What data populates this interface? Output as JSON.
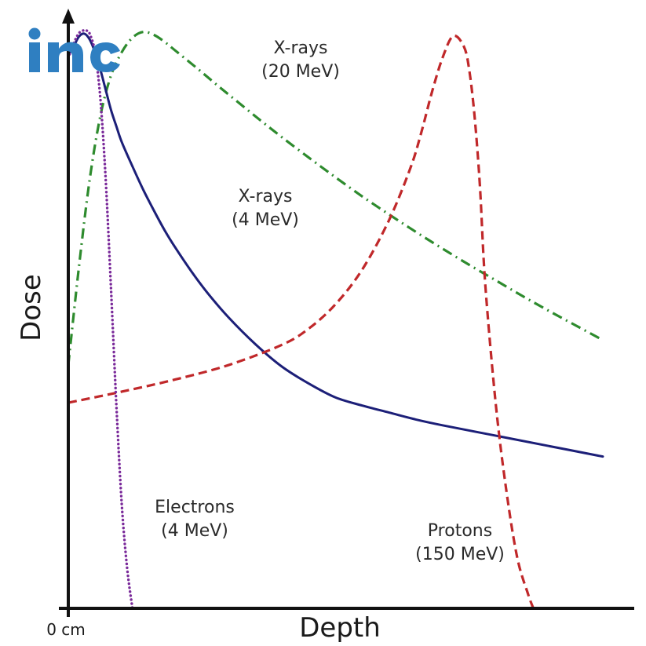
{
  "logo": {
    "text": "inc",
    "color": "#2f7fc1"
  },
  "chart_data": {
    "type": "line",
    "title": "",
    "xlabel": "Depth",
    "ylabel": "Dose",
    "x_tick_label": "0 cm",
    "xlim": [
      0,
      100
    ],
    "ylim": [
      0,
      100
    ],
    "grid": false,
    "legend": "none",
    "series": [
      {
        "name": "X-rays (20 MeV)",
        "label_lines": [
          "X-rays",
          "(20 MeV)"
        ],
        "color": "#2e8b2e",
        "dash": "dash-dot",
        "x": [
          0,
          2,
          4,
          6,
          8,
          10,
          12,
          14,
          16,
          18,
          20,
          24,
          28,
          32,
          36,
          40,
          45,
          50,
          55,
          60,
          65,
          70,
          75,
          80,
          85,
          90,
          95,
          100
        ],
        "y": [
          42,
          59,
          74,
          85,
          92,
          96,
          98.5,
          99.5,
          99,
          97.8,
          96.3,
          93.3,
          90.2,
          87.2,
          84.2,
          81.3,
          77.8,
          74.4,
          71.1,
          68,
          65,
          62.1,
          59.3,
          56.6,
          53.9,
          51.3,
          48.8,
          46.3
        ]
      },
      {
        "name": "X-rays (4 MeV)",
        "label_lines": [
          "X-rays",
          "(4 MeV)"
        ],
        "color": "#1c1f78",
        "dash": "solid",
        "x": [
          0,
          1,
          2,
          3,
          4,
          5,
          6,
          7,
          8,
          9,
          10,
          12,
          14,
          16,
          18,
          20,
          23,
          26,
          30,
          35,
          40,
          45,
          50,
          55,
          60,
          65,
          70,
          80,
          90,
          100
        ],
        "y": [
          95.5,
          97,
          98.7,
          99.2,
          98.2,
          96,
          93,
          89.5,
          86,
          83.2,
          80.5,
          76.3,
          72.3,
          68.7,
          65.3,
          62.3,
          58.2,
          54.5,
          50.2,
          45.6,
          41.7,
          38.8,
          36.4,
          35,
          33.8,
          32.6,
          31.6,
          29.8,
          28,
          26.2
        ]
      },
      {
        "name": "Electrons (4 MeV)",
        "label_lines": [
          "Electrons",
          "(4 MeV)"
        ],
        "color": "#7a2a9a",
        "dash": "dotted",
        "x": [
          0,
          1,
          2,
          3,
          3.5,
          4,
          5,
          6,
          7,
          8,
          9,
          10,
          11,
          12
        ],
        "y": [
          95,
          97.5,
          99.3,
          99.8,
          99.7,
          99.2,
          96,
          88,
          74,
          55,
          35,
          18,
          7,
          0
        ]
      },
      {
        "name": "Protons (150 MeV)",
        "label_lines": [
          "Protons",
          "(150 MeV)"
        ],
        "color": "#c0282a",
        "dash": "dashed",
        "x": [
          0,
          10,
          20,
          30,
          40,
          45,
          50,
          55,
          60,
          64,
          66,
          68,
          70,
          72,
          74,
          75,
          76,
          77,
          78,
          80,
          82,
          84,
          86,
          87
        ],
        "y": [
          35.5,
          37.4,
          39.5,
          42,
          45.5,
          48.3,
          52.5,
          58.5,
          67,
          76,
          82,
          89,
          95,
          98.8,
          97,
          93,
          85,
          73,
          56,
          35,
          20,
          8.7,
          2.5,
          0
        ]
      }
    ]
  }
}
